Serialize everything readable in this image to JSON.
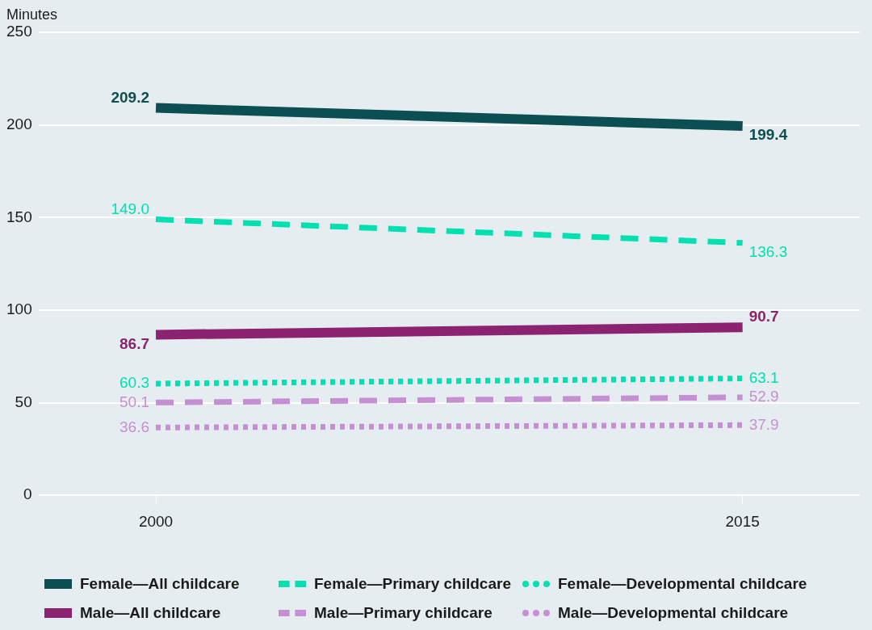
{
  "chart_data": {
    "type": "line",
    "ylabel": "Minutes",
    "x": [
      2000,
      2015
    ],
    "xlim": [
      1997,
      2018
    ],
    "xticks": [
      {
        "value": 2000,
        "label": "2000"
      },
      {
        "value": 2015,
        "label": "2015"
      }
    ],
    "ylim": [
      0,
      250
    ],
    "yticks": [
      0,
      50,
      100,
      150,
      200,
      250
    ],
    "grid": "y",
    "legend": "bottom",
    "marker": "none",
    "series": [
      {
        "name": "Female—All childcare",
        "color": "#0b4f52",
        "line_style": "solid",
        "values": [
          209.2,
          199.4
        ],
        "value_labels": [
          "209.2",
          "199.4"
        ]
      },
      {
        "name": "Female—Primary childcare",
        "color": "#00e0b0",
        "line_style": "dashed",
        "values": [
          149.0,
          136.3
        ],
        "value_labels": [
          "149.0",
          "136.3"
        ]
      },
      {
        "name": "Female—Developmental childcare",
        "color": "#00e0b0",
        "line_style": "dotted",
        "values": [
          60.3,
          63.1
        ],
        "value_labels": [
          "60.3",
          "63.1"
        ]
      },
      {
        "name": "Male—All childcare",
        "color": "#8c2370",
        "line_style": "solid",
        "values": [
          86.7,
          90.7
        ],
        "value_labels": [
          "86.7",
          "90.7"
        ]
      },
      {
        "name": "Male—Primary childcare",
        "color": "#c58fd3",
        "line_style": "dashed",
        "values": [
          50.1,
          52.9
        ],
        "value_labels": [
          "50.1",
          "52.9"
        ]
      },
      {
        "name": "Male—Developmental childcare",
        "color": "#c58fd3",
        "line_style": "dotted",
        "values": [
          36.6,
          37.9
        ],
        "value_labels": [
          "36.6",
          "37.9"
        ]
      }
    ]
  }
}
